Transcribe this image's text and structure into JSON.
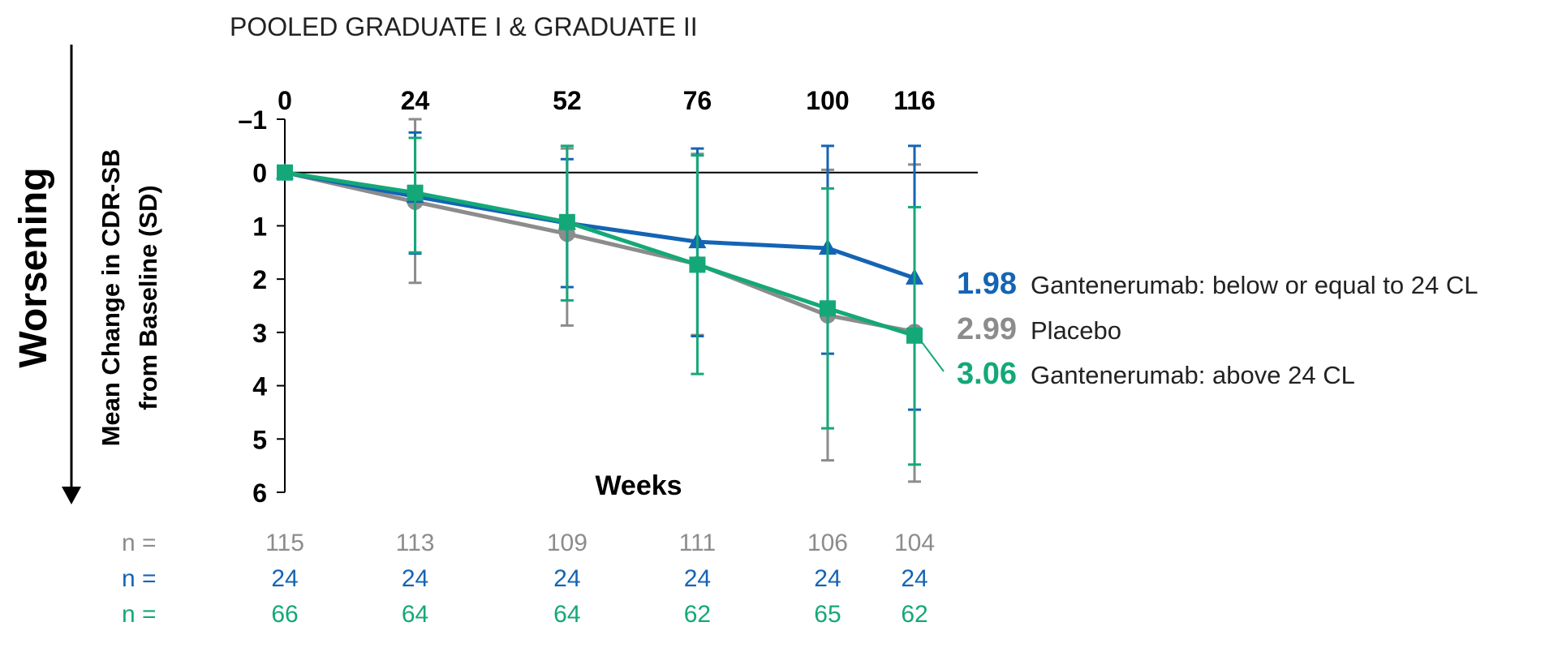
{
  "chart_data": {
    "type": "line",
    "title": "POOLED GRADUATE I & GRADUATE II",
    "xlabel": "Weeks",
    "ylabel": "Mean Change in CDR-SB from Baseline (SD)",
    "ylabel_lines": [
      "Mean Change in CDR-SB",
      "from Baseline (SD)"
    ],
    "direction_label": "Worsening",
    "y_inverted": true,
    "ylim": [
      -1,
      6
    ],
    "yticks": [
      -1,
      0,
      1,
      2,
      3,
      4,
      5,
      6
    ],
    "ytick_labels": [
      "–1",
      "0",
      "1",
      "2",
      "3",
      "4",
      "5",
      "6"
    ],
    "x": [
      0,
      24,
      52,
      76,
      100,
      116
    ],
    "x_labels": [
      "0",
      "24",
      "52",
      "76",
      "100",
      "116"
    ],
    "series": [
      {
        "name": "Placebo",
        "color": "#8c8c8c",
        "marker": "circle",
        "values": [
          0,
          0.55,
          1.15,
          1.72,
          2.68,
          2.99
        ],
        "err_low": [
          0,
          -1.0,
          -0.45,
          -0.35,
          -0.05,
          -0.15
        ],
        "err_high": [
          0,
          2.07,
          2.87,
          3.05,
          5.4,
          5.8
        ],
        "final_label": "2.99",
        "n": [
          "115",
          "113",
          "109",
          "111",
          "106",
          "104"
        ]
      },
      {
        "name": "Gantenerumab: below or equal to 24 CL",
        "color": "#1464b4",
        "marker": "triangle",
        "values": [
          0,
          0.45,
          0.95,
          1.3,
          1.42,
          1.98
        ],
        "err_low": [
          0,
          -0.75,
          -0.25,
          -0.45,
          -0.5,
          -0.5
        ],
        "err_high": [
          0,
          1.52,
          2.15,
          3.07,
          3.4,
          4.45
        ],
        "final_label": "1.98",
        "n": [
          "24",
          "24",
          "24",
          "24",
          "24",
          "24"
        ]
      },
      {
        "name": "Gantenerumab: above 24 CL",
        "color": "#14a878",
        "marker": "square",
        "values": [
          0,
          0.38,
          0.93,
          1.73,
          2.55,
          3.06
        ],
        "err_low": [
          0,
          -0.65,
          -0.5,
          -0.32,
          0.3,
          0.65
        ],
        "err_high": [
          0,
          1.5,
          2.4,
          3.78,
          4.8,
          5.48
        ],
        "final_label": "3.06",
        "n": [
          "66",
          "64",
          "64",
          "62",
          "65",
          "62"
        ]
      }
    ],
    "n_label": "n ="
  }
}
